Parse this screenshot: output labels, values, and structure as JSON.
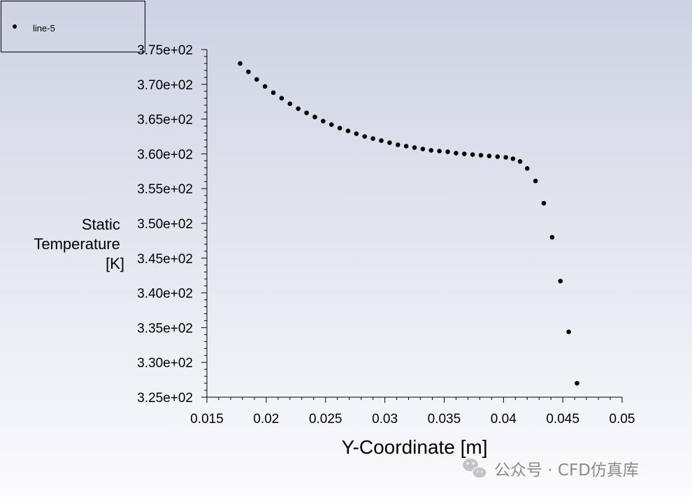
{
  "chart_data": {
    "type": "scatter",
    "xlabel": "Y-Coordinate [m]",
    "ylabel_lines": [
      "Static",
      "Temperature",
      "[K]"
    ],
    "xlim": [
      0.015,
      0.05
    ],
    "ylim": [
      325,
      375
    ],
    "x_ticks": [
      0.015,
      0.02,
      0.025,
      0.03,
      0.035,
      0.04,
      0.045,
      0.05
    ],
    "x_tick_labels": [
      "0.015",
      "0.02",
      "0.025",
      "0.03",
      "0.035",
      "0.04",
      "0.045",
      "0.05"
    ],
    "y_ticks": [
      325,
      330,
      335,
      340,
      345,
      350,
      355,
      360,
      365,
      370,
      375
    ],
    "y_tick_labels": [
      "3.25e+02",
      "3.30e+02",
      "3.35e+02",
      "3.40e+02",
      "3.45e+02",
      "3.50e+02",
      "3.55e+02",
      "3.60e+02",
      "3.65e+02",
      "3.70e+02",
      "3.75e+02"
    ],
    "grid": false,
    "legend_position": "top-left",
    "marker_color": "#000000",
    "series": [
      {
        "name": "line-5",
        "points": [
          [
            0.0178,
            373.0
          ],
          [
            0.0185,
            371.8
          ],
          [
            0.0192,
            370.7
          ],
          [
            0.0199,
            369.7
          ],
          [
            0.0206,
            368.8
          ],
          [
            0.0213,
            368.0
          ],
          [
            0.022,
            367.2
          ],
          [
            0.0227,
            366.5
          ],
          [
            0.0234,
            365.9
          ],
          [
            0.0241,
            365.3
          ],
          [
            0.0248,
            364.7
          ],
          [
            0.0255,
            364.2
          ],
          [
            0.0262,
            363.7
          ],
          [
            0.0269,
            363.3
          ],
          [
            0.0276,
            362.9
          ],
          [
            0.0283,
            362.5
          ],
          [
            0.029,
            362.2
          ],
          [
            0.0297,
            361.9
          ],
          [
            0.0304,
            361.6
          ],
          [
            0.0311,
            361.3
          ],
          [
            0.0318,
            361.1
          ],
          [
            0.0325,
            360.9
          ],
          [
            0.0332,
            360.7
          ],
          [
            0.0339,
            360.5
          ],
          [
            0.0346,
            360.4
          ],
          [
            0.0353,
            360.3
          ],
          [
            0.036,
            360.1
          ],
          [
            0.0367,
            360.0
          ],
          [
            0.0374,
            359.9
          ],
          [
            0.0381,
            359.8
          ],
          [
            0.0388,
            359.7
          ],
          [
            0.0395,
            359.6
          ],
          [
            0.0402,
            359.5
          ],
          [
            0.0408,
            359.3
          ],
          [
            0.0414,
            358.9
          ],
          [
            0.042,
            357.9
          ],
          [
            0.0427,
            356.1
          ],
          [
            0.0434,
            352.9
          ],
          [
            0.0441,
            348.0
          ],
          [
            0.0448,
            341.7
          ],
          [
            0.0455,
            334.4
          ],
          [
            0.0462,
            327.0
          ]
        ]
      }
    ]
  },
  "watermark": {
    "text": "公众号 · CFD仿真库",
    "icon": "wechat-icon"
  }
}
